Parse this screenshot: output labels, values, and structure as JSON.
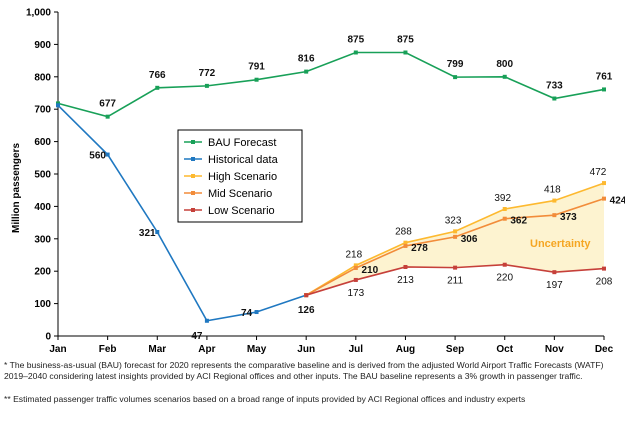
{
  "chart_data": {
    "type": "line",
    "categories": [
      "Jan",
      "Feb",
      "Mar",
      "Apr",
      "May",
      "Jun",
      "Jul",
      "Aug",
      "Sep",
      "Oct",
      "Nov",
      "Dec"
    ],
    "ylabel": "Million passengers",
    "ylim": [
      0,
      1000
    ],
    "yticks": [
      "0",
      "100",
      "200",
      "300",
      "400",
      "500",
      "600",
      "700",
      "800",
      "900",
      "1,000"
    ],
    "grid": false,
    "legend_position": "center-left",
    "series": [
      {
        "name": "BAU Forecast",
        "color": "#18a058",
        "values": [
          718,
          677,
          766,
          772,
          791,
          816,
          875,
          875,
          799,
          800,
          733,
          761
        ],
        "labels": [
          "",
          "677",
          "766",
          "772",
          "791",
          "816",
          "875",
          "875",
          "799",
          "800",
          "733",
          "761"
        ]
      },
      {
        "name": "Historical data",
        "color": "#1f78c1",
        "values": [
          712,
          560,
          321,
          47,
          74,
          126,
          null,
          null,
          null,
          null,
          null,
          null
        ],
        "labels": [
          "",
          "560",
          "321",
          "47",
          "74",
          "126",
          "",
          "",
          "",
          "",
          "",
          ""
        ]
      },
      {
        "name": "High Scenario",
        "color": "#fdb92f",
        "values": [
          null,
          null,
          null,
          null,
          null,
          126,
          218,
          288,
          323,
          392,
          418,
          472
        ],
        "labels": [
          "",
          "",
          "",
          "",
          "",
          "",
          "218",
          "288",
          "323",
          "392",
          "418",
          "472"
        ]
      },
      {
        "name": "Mid Scenario",
        "color": "#f28c3a",
        "values": [
          null,
          null,
          null,
          null,
          null,
          126,
          210,
          278,
          306,
          362,
          373,
          424
        ],
        "labels": [
          "",
          "",
          "",
          "",
          "",
          "",
          "210",
          "278",
          "306",
          "362",
          "373",
          "424"
        ]
      },
      {
        "name": "Low Scenario",
        "color": "#c6403a",
        "values": [
          null,
          null,
          null,
          null,
          null,
          126,
          173,
          213,
          211,
          220,
          197,
          208
        ],
        "labels": [
          "",
          "",
          "",
          "",
          "",
          "",
          "173",
          "213",
          "211",
          "220",
          "197",
          "208"
        ]
      }
    ],
    "annotation": "Uncertainty",
    "annotation_color": "#f5a623",
    "band_color": "#fdf3d0"
  },
  "footnotes": {
    "note1": "* The business-as-usual (BAU) forecast for 2020 represents the comparative baseline and is derived from the adjusted World Airport Traffic Forecasts (WATF) 2019–2040 considering latest insights provided by ACI Regional offices and other inputs. The BAU baseline represents a 3% growth in passenger traffic.",
    "note2": "** Estimated passenger traffic volumes scenarios based on a broad range of inputs provided by ACI Regional offices and industry experts"
  }
}
